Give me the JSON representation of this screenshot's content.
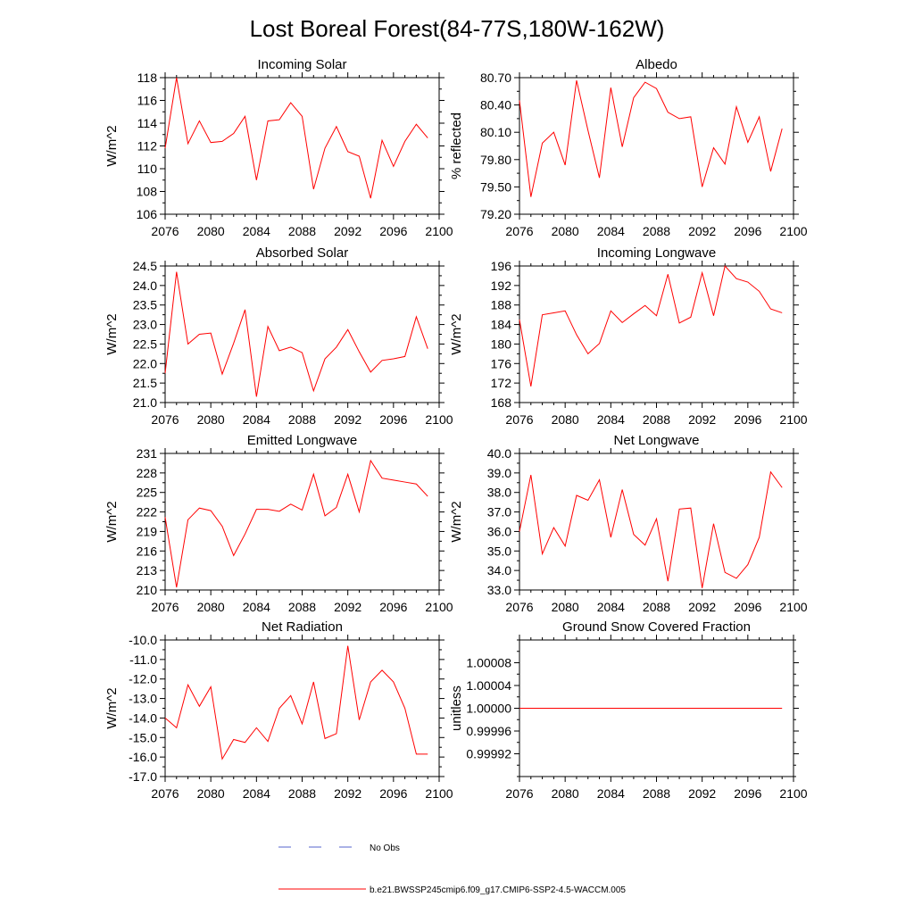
{
  "title": "Lost Boreal Forest(84-77S,180W-162W)",
  "legend": {
    "obs_label": "No Obs",
    "obs_color": "#5566cc",
    "model_label": "b.e21.BWSSP245cmip6.f09_g17.CMIP6-SSP2-4.5-WACCM.005",
    "model_color": "#ff0000"
  },
  "chart_data": [
    {
      "type": "line",
      "title": "Incoming Solar",
      "ylabel": "W/m^2",
      "xlim": [
        2076,
        2100
      ],
      "ylim": [
        106,
        118
      ],
      "xticks": [
        "2076",
        "2080",
        "2084",
        "2088",
        "2092",
        "2096",
        "2100"
      ],
      "yticks": [
        "106",
        "108",
        "110",
        "112",
        "114",
        "116",
        "118"
      ],
      "x": [
        2076,
        2077,
        2078,
        2079,
        2080,
        2081,
        2082,
        2083,
        2084,
        2085,
        2086,
        2087,
        2088,
        2089,
        2090,
        2091,
        2092,
        2093,
        2094,
        2095,
        2096,
        2097,
        2098,
        2099
      ],
      "values": [
        111.8,
        118.0,
        112.2,
        114.2,
        112.3,
        112.4,
        113.1,
        114.6,
        109.0,
        114.2,
        114.3,
        115.8,
        114.6,
        108.2,
        111.8,
        113.7,
        111.5,
        111.1,
        107.4,
        112.5,
        110.2,
        112.4,
        113.9,
        112.7
      ]
    },
    {
      "type": "line",
      "title": "Albedo",
      "ylabel": "% reflected",
      "xlim": [
        2076,
        2100
      ],
      "ylim": [
        79.2,
        80.7
      ],
      "xticks": [
        "2076",
        "2080",
        "2084",
        "2088",
        "2092",
        "2096",
        "2100"
      ],
      "yticks": [
        "79.20",
        "79.50",
        "79.80",
        "80.10",
        "80.40",
        "80.70"
      ],
      "x": [
        2076,
        2077,
        2078,
        2079,
        2080,
        2081,
        2082,
        2083,
        2084,
        2085,
        2086,
        2087,
        2088,
        2089,
        2090,
        2091,
        2092,
        2093,
        2094,
        2095,
        2096,
        2097,
        2098,
        2099
      ],
      "values": [
        80.45,
        79.39,
        79.98,
        80.1,
        79.74,
        80.67,
        80.12,
        79.6,
        80.59,
        79.94,
        80.48,
        80.65,
        80.58,
        80.32,
        80.25,
        80.27,
        79.5,
        79.93,
        79.75,
        80.38,
        79.99,
        80.27,
        79.67,
        80.14
      ]
    },
    {
      "type": "line",
      "title": "Absorbed Solar",
      "ylabel": "W/m^2",
      "xlim": [
        2076,
        2100
      ],
      "ylim": [
        21.0,
        24.5
      ],
      "xticks": [
        "2076",
        "2080",
        "2084",
        "2088",
        "2092",
        "2096",
        "2100"
      ],
      "yticks": [
        "21.0",
        "21.5",
        "22.0",
        "22.5",
        "23.0",
        "23.5",
        "24.0",
        "24.5"
      ],
      "x": [
        2076,
        2077,
        2078,
        2079,
        2080,
        2081,
        2082,
        2083,
        2084,
        2085,
        2086,
        2087,
        2088,
        2089,
        2090,
        2091,
        2092,
        2093,
        2094,
        2095,
        2096,
        2097,
        2098,
        2099
      ],
      "values": [
        21.75,
        24.35,
        22.5,
        22.75,
        22.78,
        21.73,
        22.52,
        23.38,
        21.15,
        22.95,
        22.33,
        22.42,
        22.28,
        21.3,
        22.12,
        22.42,
        22.87,
        22.3,
        21.78,
        22.08,
        22.12,
        22.18,
        23.2,
        22.38
      ]
    },
    {
      "type": "line",
      "title": "Incoming Longwave",
      "ylabel": "W/m^2",
      "xlim": [
        2076,
        2100
      ],
      "ylim": [
        168,
        196
      ],
      "xticks": [
        "2076",
        "2080",
        "2084",
        "2088",
        "2092",
        "2096",
        "2100"
      ],
      "yticks": [
        "168",
        "172",
        "176",
        "180",
        "184",
        "188",
        "192",
        "196"
      ],
      "x": [
        2076,
        2077,
        2078,
        2079,
        2080,
        2081,
        2082,
        2083,
        2084,
        2085,
        2086,
        2087,
        2088,
        2089,
        2090,
        2091,
        2092,
        2093,
        2094,
        2095,
        2096,
        2097,
        2098,
        2099
      ],
      "values": [
        185.0,
        171.3,
        186.0,
        186.4,
        186.8,
        181.9,
        178.0,
        180.1,
        186.8,
        184.4,
        186.2,
        187.9,
        185.8,
        194.3,
        184.3,
        185.5,
        194.6,
        185.8,
        196.0,
        193.4,
        192.7,
        190.8,
        187.2,
        186.4
      ]
    },
    {
      "type": "line",
      "title": "Emitted Longwave",
      "ylabel": "W/m^2",
      "xlim": [
        2076,
        2100
      ],
      "ylim": [
        210,
        231
      ],
      "xticks": [
        "2076",
        "2080",
        "2084",
        "2088",
        "2092",
        "2096",
        "2100"
      ],
      "yticks": [
        "210",
        "213",
        "216",
        "219",
        "222",
        "225",
        "228",
        "231"
      ],
      "x": [
        2076,
        2077,
        2078,
        2079,
        2080,
        2081,
        2082,
        2083,
        2084,
        2085,
        2086,
        2087,
        2088,
        2089,
        2090,
        2091,
        2092,
        2093,
        2094,
        2095,
        2096,
        2097,
        2098,
        2099
      ],
      "values": [
        221.2,
        210.4,
        220.8,
        222.6,
        222.2,
        219.8,
        215.3,
        218.6,
        222.4,
        222.4,
        222.1,
        223.2,
        222.3,
        227.8,
        221.4,
        222.7,
        227.8,
        222.0,
        229.9,
        227.2,
        226.9,
        226.6,
        226.3,
        224.4
      ]
    },
    {
      "type": "line",
      "title": "Net Longwave",
      "ylabel": "W/m^2",
      "xlim": [
        2076,
        2100
      ],
      "ylim": [
        33.0,
        40.0
      ],
      "xticks": [
        "2076",
        "2080",
        "2084",
        "2088",
        "2092",
        "2096",
        "2100"
      ],
      "yticks": [
        "33.0",
        "34.0",
        "35.0",
        "36.0",
        "37.0",
        "38.0",
        "39.0",
        "40.0"
      ],
      "x": [
        2076,
        2077,
        2078,
        2079,
        2080,
        2081,
        2082,
        2083,
        2084,
        2085,
        2086,
        2087,
        2088,
        2089,
        2090,
        2091,
        2092,
        2093,
        2094,
        2095,
        2096,
        2097,
        2098,
        2099
      ],
      "values": [
        36.0,
        38.9,
        34.85,
        36.2,
        35.25,
        37.85,
        37.6,
        38.65,
        35.7,
        38.15,
        35.85,
        35.3,
        36.65,
        33.45,
        37.15,
        37.2,
        33.1,
        36.4,
        33.9,
        33.6,
        34.3,
        35.7,
        39.05,
        38.25
      ]
    },
    {
      "type": "line",
      "title": "Net Radiation",
      "ylabel": "W/m^2",
      "xlim": [
        2076,
        2100
      ],
      "ylim": [
        -17.0,
        -10.0
      ],
      "xticks": [
        "2076",
        "2080",
        "2084",
        "2088",
        "2092",
        "2096",
        "2100"
      ],
      "yticks": [
        "-17.0",
        "-16.0",
        "-15.0",
        "-14.0",
        "-13.0",
        "-12.0",
        "-11.0",
        "-10.0"
      ],
      "x": [
        2076,
        2077,
        2078,
        2079,
        2080,
        2081,
        2082,
        2083,
        2084,
        2085,
        2086,
        2087,
        2088,
        2089,
        2090,
        2091,
        2092,
        2093,
        2094,
        2095,
        2096,
        2097,
        2098,
        2099
      ],
      "values": [
        -14.0,
        -14.5,
        -12.3,
        -13.4,
        -12.4,
        -16.1,
        -15.1,
        -15.25,
        -14.5,
        -15.2,
        -13.5,
        -12.85,
        -14.3,
        -12.15,
        -15.05,
        -14.8,
        -10.3,
        -14.1,
        -12.15,
        -11.55,
        -12.15,
        -13.5,
        -15.85,
        -15.85
      ]
    },
    {
      "type": "line",
      "title": "Ground Snow Covered Fraction",
      "ylabel": "unitless",
      "xlim": [
        2076,
        2100
      ],
      "ylim": [
        0.99988,
        1.00012
      ],
      "xticks": [
        "2076",
        "2080",
        "2084",
        "2088",
        "2092",
        "2096",
        "2100"
      ],
      "yticks": [
        "0.99992",
        "0.99996",
        "1.00000",
        "1.00004",
        "1.00008"
      ],
      "x": [
        2076,
        2077,
        2078,
        2079,
        2080,
        2081,
        2082,
        2083,
        2084,
        2085,
        2086,
        2087,
        2088,
        2089,
        2090,
        2091,
        2092,
        2093,
        2094,
        2095,
        2096,
        2097,
        2098,
        2099
      ],
      "values": [
        1.0,
        1.0,
        1.0,
        1.0,
        1.0,
        1.0,
        1.0,
        1.0,
        1.0,
        1.0,
        1.0,
        1.0,
        1.0,
        1.0,
        1.0,
        1.0,
        1.0,
        1.0,
        1.0,
        1.0,
        1.0,
        1.0,
        1.0,
        1.0
      ]
    }
  ]
}
